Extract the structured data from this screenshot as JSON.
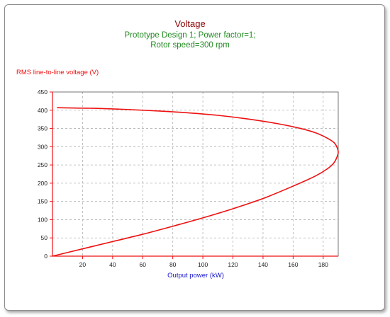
{
  "colors": {
    "title": "#8b0000",
    "subtitle": "#228b22",
    "series": "#ee1111",
    "y_label": "#ee1111",
    "x_label": "#1111cc",
    "axis": "#ee1111",
    "tick_label": "#222222",
    "grid": "#b0b0b0"
  },
  "chart_data": {
    "type": "line",
    "title": "Voltage",
    "subtitle_lines": [
      "Prototype Design 1; Power factor=1;",
      "Rotor speed=300 rpm"
    ],
    "xlabel": "Output power (kW)",
    "ylabel": "RMS line-to-line voltage (V)",
    "xlim": [
      0,
      190
    ],
    "ylim": [
      0,
      450
    ],
    "xticks": [
      20,
      40,
      60,
      80,
      100,
      120,
      140,
      160,
      180
    ],
    "yticks": [
      0,
      50,
      100,
      150,
      200,
      250,
      300,
      350,
      400,
      450
    ],
    "grid": true,
    "series": [
      {
        "x": [
          0,
          20,
          40,
          60,
          80,
          100,
          120,
          140,
          160,
          175,
          183,
          187,
          189,
          190,
          189,
          187,
          182,
          175,
          165,
          150,
          130,
          110,
          90,
          70,
          50,
          30,
          15,
          3
        ],
        "y": [
          0,
          20,
          40,
          60,
          82,
          105,
          130,
          158,
          192,
          220,
          240,
          255,
          270,
          285,
          300,
          312,
          325,
          338,
          350,
          363,
          376,
          386,
          393,
          398,
          402,
          405,
          406,
          407
        ]
      }
    ]
  }
}
